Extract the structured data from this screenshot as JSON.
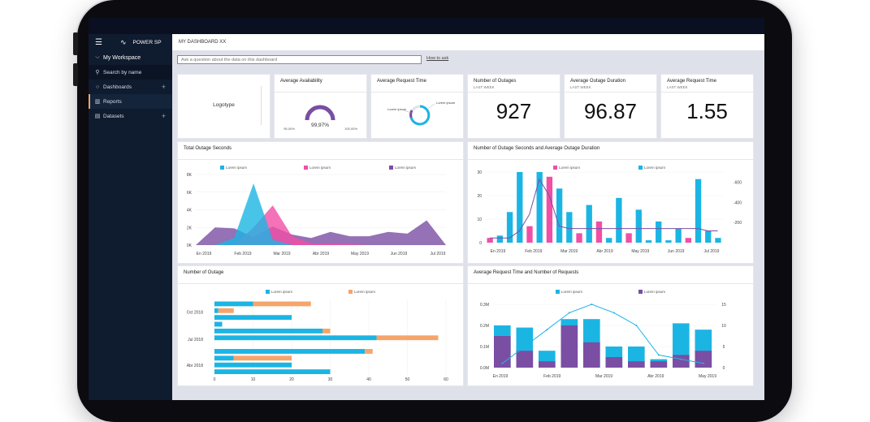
{
  "sidebar": {
    "brand": "POWER SP",
    "workspace": "My Workspace",
    "search": "Search by name",
    "items": [
      {
        "label": "Dashboards",
        "icon": "dashboard-icon"
      },
      {
        "label": "Reports",
        "icon": "report-icon"
      },
      {
        "label": "Datasets",
        "icon": "dataset-icon"
      }
    ]
  },
  "header": {
    "title": "MY DASHBOARD XX"
  },
  "qa": {
    "placeholder": "Ask a question about the data on this dashboard",
    "howto": "How to ask"
  },
  "tiles": {
    "logotype": "Logotype",
    "availability": {
      "title": "Average Availability",
      "value": "99,97%",
      "min": "95,00%",
      "max": "100,00%",
      "fraction": 0.9997
    },
    "request_time": {
      "title": "Average Request Time",
      "label1": "Lorem ipsum",
      "label2": "Lorem ipsum"
    },
    "outages": {
      "title": "Number of Outages",
      "subtitle": "LAST WEEK",
      "value": "927"
    },
    "duration": {
      "title": "Average Outage Duration",
      "subtitle": "LAST WEEK",
      "value": "96.87"
    },
    "req_time2": {
      "title": "Average Request Time",
      "subtitle": "LAST WEEK",
      "value": "1.55"
    }
  },
  "colors": {
    "blue": "#1bb5e4",
    "pink": "#f04fa6",
    "purple": "#7a4ea3",
    "orange": "#f6a56a",
    "navy": "#0f1b2e"
  },
  "chart_data": [
    {
      "type": "area",
      "title": "Total Outage Seconds",
      "legend": [
        "Lorem ipsum",
        "Lorem ipsum",
        "Lorem ipsum"
      ],
      "categories": [
        "En 2019",
        "Feb 2019",
        "Mar 2019",
        "Abr 2019",
        "May 2019",
        "Jun 2019",
        "Jul 2019"
      ],
      "x": [
        0,
        1,
        2,
        3,
        4,
        5,
        6,
        7,
        8,
        9,
        10,
        11,
        12,
        13
      ],
      "yticks": [
        "0K",
        "2K",
        "4K",
        "6K",
        "8K"
      ],
      "ylim": [
        0,
        8000
      ],
      "series": [
        {
          "values": [
            0,
            0,
            800,
            7000,
            600,
            0,
            0,
            0,
            0,
            0,
            0,
            0,
            0,
            0
          ],
          "color": "#1bb5e4"
        },
        {
          "values": [
            0,
            0,
            0,
            2000,
            4500,
            1000,
            200,
            200,
            100,
            0,
            0,
            0,
            0,
            0
          ],
          "color": "#f04fa6"
        },
        {
          "values": [
            0,
            2000,
            1900,
            900,
            2100,
            1200,
            800,
            1500,
            1000,
            1000,
            1500,
            1300,
            2800,
            0
          ],
          "color": "#7a4ea3"
        }
      ]
    },
    {
      "type": "bar",
      "title": "Number of Outage Seconds and Average Outage Duration",
      "legend": [
        "Lorem ipsum",
        "Lorem ipsum"
      ],
      "categories": [
        "En 2019",
        "Feb 2019",
        "Mar 2019",
        "Abr 2019",
        "May 2019",
        "Jun 2019",
        "Jul 2019"
      ],
      "yticks_left": [
        "0",
        "10",
        "20",
        "30"
      ],
      "yticks_right": [
        "-200",
        "-400",
        "-600"
      ],
      "bars": [
        {
          "v": 2,
          "c": "#f04fa6"
        },
        {
          "v": 3,
          "c": "#1bb5e4"
        },
        {
          "v": 13,
          "c": "#1bb5e4"
        },
        {
          "v": 30,
          "c": "#1bb5e4"
        },
        {
          "v": 7,
          "c": "#f04fa6"
        },
        {
          "v": 30,
          "c": "#1bb5e4"
        },
        {
          "v": 28,
          "c": "#f04fa6"
        },
        {
          "v": 23,
          "c": "#1bb5e4"
        },
        {
          "v": 13,
          "c": "#1bb5e4"
        },
        {
          "v": 4,
          "c": "#f04fa6"
        },
        {
          "v": 16,
          "c": "#1bb5e4"
        },
        {
          "v": 9,
          "c": "#f04fa6"
        },
        {
          "v": 2,
          "c": "#1bb5e4"
        },
        {
          "v": 19,
          "c": "#1bb5e4"
        },
        {
          "v": 4,
          "c": "#f04fa6"
        },
        {
          "v": 14,
          "c": "#1bb5e4"
        },
        {
          "v": 1,
          "c": "#1bb5e4"
        },
        {
          "v": 9,
          "c": "#1bb5e4"
        },
        {
          "v": 1,
          "c": "#1bb5e4"
        },
        {
          "v": 6,
          "c": "#1bb5e4"
        },
        {
          "v": 2,
          "c": "#f04fa6"
        },
        {
          "v": 27,
          "c": "#1bb5e4"
        },
        {
          "v": 5,
          "c": "#1bb5e4"
        },
        {
          "v": 2,
          "c": "#1bb5e4"
        }
      ],
      "line": [
        2,
        2,
        2,
        5,
        12,
        27,
        20,
        7,
        6,
        6,
        6,
        6,
        6,
        6,
        6,
        6,
        6,
        6,
        6,
        6,
        6,
        6,
        5,
        5
      ]
    },
    {
      "type": "bar",
      "title": "Number of Outage",
      "legend": [
        "Lorem ipsum",
        "Lorem ipsum"
      ],
      "categories": [
        "Oct 2018",
        "Jul 2018",
        "Abr 2018"
      ],
      "xticks": [
        "0",
        "10",
        "20",
        "30",
        "40",
        "50",
        "60"
      ],
      "xlim": [
        0,
        60
      ],
      "rows": [
        {
          "a": 10,
          "b": 25
        },
        {
          "a": 1,
          "b": 5
        },
        {
          "a": 20,
          "b": 0
        },
        {
          "a": 2,
          "b": 0
        },
        {
          "a": 28,
          "b": 30
        },
        {
          "a": 42,
          "b": 58
        },
        {
          "a": 0,
          "b": 0
        },
        {
          "a": 39,
          "b": 41
        },
        {
          "a": 5,
          "b": 20
        },
        {
          "a": 20,
          "b": 0
        },
        {
          "a": 30,
          "b": 0
        }
      ]
    },
    {
      "type": "bar",
      "title": "Average Request Time and Number of Requests",
      "legend": [
        "Lorem ipsum",
        "Lorem ipsum"
      ],
      "categories": [
        "En 2019",
        "Feb 2019",
        "Mar 2019",
        "Abr 2019",
        "May 2019"
      ],
      "yticks_left": [
        "0.0M",
        "0.1M",
        "0.2M",
        "0.3M"
      ],
      "yticks_right": [
        "0",
        "5",
        "10",
        "15"
      ],
      "bars": [
        {
          "top": 0.2,
          "purple": 0.15
        },
        {
          "top": 0.19,
          "purple": 0.08
        },
        {
          "top": 0.08,
          "purple": 0.03
        },
        {
          "top": 0.23,
          "purple": 0.2
        },
        {
          "top": 0.23,
          "purple": 0.12
        },
        {
          "top": 0.1,
          "purple": 0.05
        },
        {
          "top": 0.1,
          "purple": 0.03
        },
        {
          "top": 0.04,
          "purple": 0.03
        },
        {
          "top": 0.21,
          "purple": 0.06
        },
        {
          "top": 0.18,
          "purple": 0.08
        }
      ],
      "line": [
        1,
        5,
        9,
        13,
        15,
        13,
        10,
        3,
        2,
        1
      ]
    }
  ]
}
